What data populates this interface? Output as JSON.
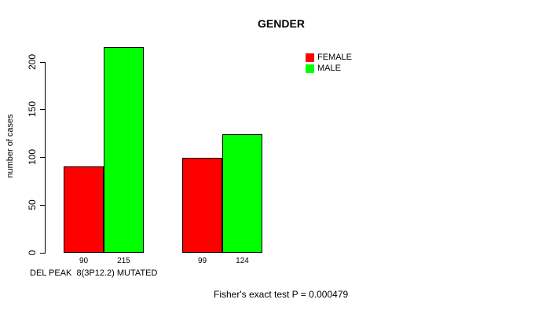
{
  "chart": {
    "title": "GENDER",
    "ylabel": "number of cases",
    "xlabel": "DEL PEAK  8(3P12.2) MUTATED",
    "annotation": "Fisher's exact test P = 0.000479"
  },
  "chart_data": {
    "type": "bar",
    "title": "GENDER",
    "xlabel": "DEL PEAK  8(3P12.2) MUTATED",
    "ylabel": "number of cases",
    "categories": [
      "",
      ""
    ],
    "series": [
      {
        "name": "FEMALE",
        "color": "#FF0000",
        "values": [
          90,
          99
        ]
      },
      {
        "name": "MALE",
        "color": "#00FF00",
        "values": [
          215,
          124
        ]
      }
    ],
    "bar_value_labels_shown": true,
    "yticks": [
      0,
      50,
      100,
      150,
      200
    ],
    "ylim": [
      0,
      220
    ],
    "grid": false,
    "legend_position": "top-right",
    "legend_entries": [
      "FEMALE",
      "MALE"
    ],
    "annotation": "Fisher's exact test P = 0.000479",
    "text_color": "#000000",
    "background_color": "#FFFFFF"
  }
}
